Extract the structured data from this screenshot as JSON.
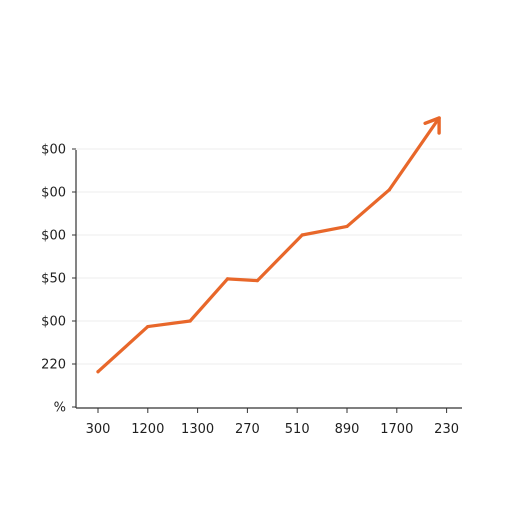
{
  "chart_data": {
    "type": "line",
    "x_tick_labels": [
      "300",
      "1200",
      "1300",
      "270",
      "510",
      "890",
      "1700",
      "230"
    ],
    "y_tick_labels": [
      "%",
      "220",
      "$00",
      "$50",
      "$00",
      "$00",
      "$00"
    ],
    "y_tick_values": [
      0,
      1,
      2,
      3,
      4,
      5,
      6
    ],
    "ylim": [
      0,
      6
    ],
    "xlim": [
      0,
      7
    ],
    "grid": true,
    "series": [
      {
        "color": "#e8672a",
        "x": [
          0,
          1,
          1.85,
          2.6,
          3.2,
          4.1,
          5.0,
          5.85,
          6.85
        ],
        "y": [
          0.82,
          1.87,
          2.0,
          2.98,
          2.94,
          4.0,
          4.2,
          5.05,
          6.72
        ],
        "end_marker": "arrow"
      }
    ]
  }
}
